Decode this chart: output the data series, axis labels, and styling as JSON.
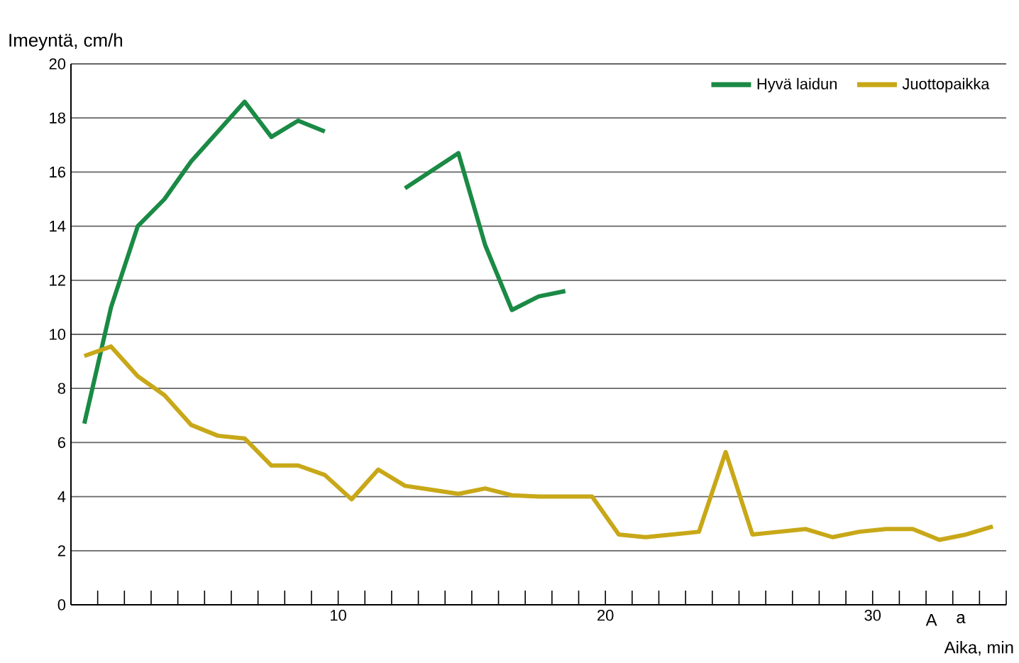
{
  "chart_data": {
    "type": "line",
    "ylabel": "Imeyntä, cm/h",
    "xlabel": "Aika, min",
    "xlim": [
      0,
      35
    ],
    "ylim": [
      0,
      20
    ],
    "xticks": [
      {
        "value": 1,
        "label": null
      },
      {
        "value": 2,
        "label": null
      },
      {
        "value": 3,
        "label": null
      },
      {
        "value": 4,
        "label": null
      },
      {
        "value": 5,
        "label": null
      },
      {
        "value": 6,
        "label": null
      },
      {
        "value": 7,
        "label": null
      },
      {
        "value": 8,
        "label": null
      },
      {
        "value": 9,
        "label": null
      },
      10,
      {
        "value": 11,
        "label": null
      },
      {
        "value": 12,
        "label": null
      },
      {
        "value": 13,
        "label": null
      },
      {
        "value": 14,
        "label": null
      },
      {
        "value": 15,
        "label": null
      },
      {
        "value": 16,
        "label": null
      },
      {
        "value": 17,
        "label": null
      },
      {
        "value": 18,
        "label": null
      },
      {
        "value": 19,
        "label": null
      },
      20,
      {
        "value": 21,
        "label": null
      },
      {
        "value": 22,
        "label": null
      },
      {
        "value": 23,
        "label": null
      },
      {
        "value": 24,
        "label": null
      },
      {
        "value": 25,
        "label": null
      },
      {
        "value": 26,
        "label": null
      },
      {
        "value": 27,
        "label": null
      },
      {
        "value": 28,
        "label": null
      },
      {
        "value": 29,
        "label": null
      },
      30,
      {
        "value": 31,
        "label": null
      },
      {
        "value": 32,
        "label": null
      },
      {
        "value": 33,
        "label": null
      },
      {
        "value": 34,
        "label": null
      },
      {
        "value": 35,
        "label": null
      }
    ],
    "yticks": [
      0,
      2,
      4,
      6,
      8,
      10,
      12,
      14,
      16,
      18,
      20
    ],
    "grid": "y",
    "legend": "top right",
    "marker": "none",
    "line_style": "solid",
    "annotations": [
      "A",
      "a"
    ],
    "series": [
      {
        "name": "Hyvä laidun",
        "color": "#1a8a45",
        "x": [
          0.5,
          1.5,
          2.5,
          3.5,
          4.5,
          5.5,
          6.5,
          7.5,
          8.5,
          9.5,
          11,
          12.5,
          14.5,
          15.5,
          16.5,
          17.5,
          18.5
        ],
        "values": [
          6.7,
          11,
          14,
          15,
          16.4,
          17.5,
          18.6,
          17.3,
          17.9,
          17.5,
          null,
          15.4,
          16.7,
          13.3,
          10.9,
          11.4,
          11.6
        ]
      },
      {
        "name": "Juottopaikka",
        "color": "#c8a818",
        "x": [
          0.5,
          1.5,
          2.5,
          3.5,
          4.5,
          5.5,
          6.5,
          7.5,
          8.5,
          9.5,
          10.5,
          11.5,
          12.5,
          13.5,
          14.5,
          15.5,
          16.5,
          17.5,
          18.5,
          19.5,
          20.5,
          21.5,
          22.5,
          23.5,
          24.5,
          25.5,
          26.5,
          27.5,
          28.5,
          29.5,
          30.5,
          31.5,
          32.5,
          33.5,
          34.5
        ],
        "values": [
          9.2,
          9.55,
          8.45,
          7.75,
          6.65,
          6.25,
          6.15,
          5.15,
          5.15,
          4.8,
          3.9,
          5.0,
          4.4,
          4.25,
          4.1,
          4.3,
          4.05,
          4.0,
          4.0,
          4.0,
          2.6,
          2.5,
          2.6,
          2.7,
          5.65,
          2.6,
          2.7,
          2.8,
          2.5,
          2.7,
          2.8,
          2.8,
          2.4,
          2.6,
          2.9
        ]
      }
    ]
  }
}
